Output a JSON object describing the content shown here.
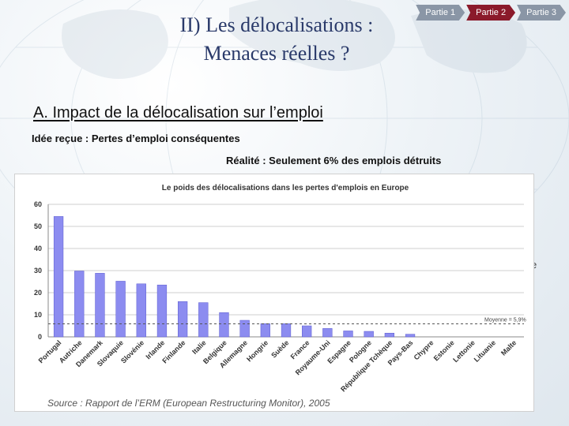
{
  "nav": {
    "items": [
      {
        "label": "Partie 1"
      },
      {
        "label": "Partie 2"
      },
      {
        "label": "Partie 3"
      }
    ],
    "active_index": 1
  },
  "title": {
    "line1": "II) Les délocalisations :",
    "line2": "Menaces réelles ?"
  },
  "section_title": "A. Impact de la délocalisation sur l’emploi",
  "idee": "Idée reçue : Pertes d’emploi conséquentes",
  "realite": "Réalité : Seulement 6% des emplois détruits",
  "stray": "e",
  "chart_data": {
    "type": "bar",
    "title": "Le poids des délocalisations dans les pertes d'emplois en Europe",
    "categories": [
      "Portugal",
      "Autriche",
      "Danemark",
      "Slovaquie",
      "Slovénie",
      "Irlande",
      "Finlande",
      "Italie",
      "Belgique",
      "Allemagne",
      "Hongrie",
      "Suède",
      "France",
      "Royaume-Uni",
      "Espagne",
      "Pologne",
      "République Tchèque",
      "Pays-Bas",
      "Chypre",
      "Estonie",
      "Lettonie",
      "Lituanie",
      "Malte"
    ],
    "values": [
      54.5,
      29.8,
      28.8,
      25.2,
      24.0,
      23.5,
      16.0,
      15.5,
      11.0,
      7.5,
      6.0,
      6.0,
      5.0,
      3.8,
      2.7,
      2.5,
      1.7,
      1.2,
      0,
      0,
      0,
      0,
      0
    ],
    "ylim": [
      0,
      60
    ],
    "yticks": [
      0,
      10,
      20,
      30,
      40,
      50,
      60
    ],
    "average": 5.9,
    "average_label": "Moyenne = 5,9%",
    "bar_color": "#8c8cf0",
    "source": "Source : Rapport de l’ERM (European Restructuring Monitor), 2005"
  }
}
